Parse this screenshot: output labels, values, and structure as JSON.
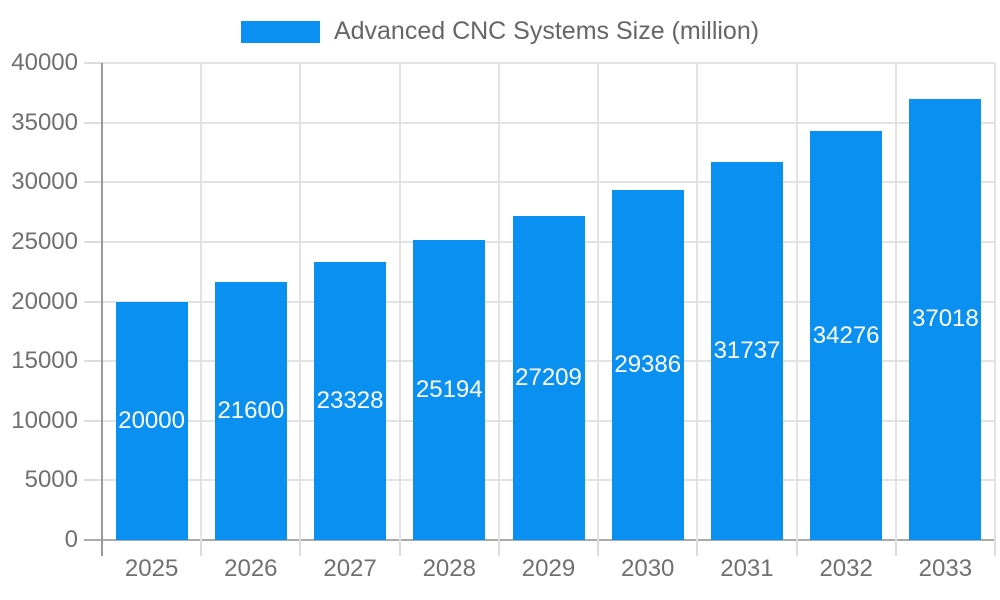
{
  "chart_data": {
    "type": "bar",
    "title": "Advanced CNC Systems Size (million)",
    "series_name": "Advanced CNC Systems Size (million)",
    "categories": [
      "2025",
      "2026",
      "2027",
      "2028",
      "2029",
      "2030",
      "2031",
      "2032",
      "2033"
    ],
    "values": [
      20000,
      21600,
      23328,
      25194,
      27209,
      29386,
      31737,
      34276,
      37018
    ],
    "bar_value_labels": [
      "20000",
      "21600",
      "23328",
      "25194",
      "27209",
      "29386",
      "31737",
      "34276",
      "37018"
    ],
    "xlabel": "",
    "ylabel": "",
    "ylim": [
      0,
      40000
    ],
    "ytick_step": 5000,
    "y_ticks": [
      "0",
      "5000",
      "10000",
      "15000",
      "20000",
      "25000",
      "30000",
      "35000",
      "40000"
    ],
    "grid": true,
    "legend_position": "top",
    "colors": {
      "bar": "#0990f0",
      "bar_label": "#ffffff",
      "grid": "#e3e3e3",
      "light_tick": "#dcdcdc",
      "axis": "#999999",
      "zero_axis": "#aaaaaa",
      "tick_text": "#707070",
      "legend_text": "#666666",
      "background": "#ffffff"
    }
  }
}
